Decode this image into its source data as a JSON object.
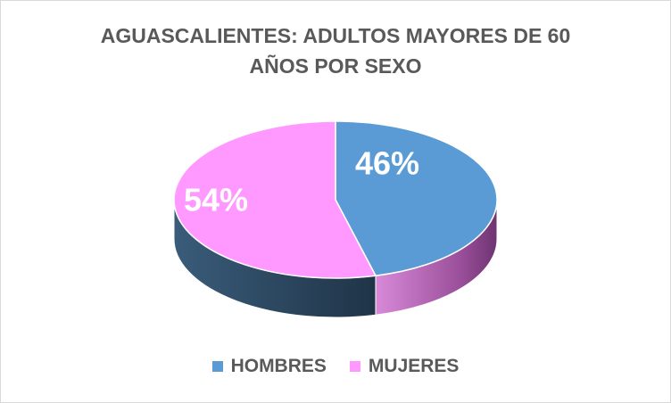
{
  "chart_data": {
    "type": "pie",
    "title_lines": [
      "AGUASCALIENTES: ADULTOS MAYORES DE 60",
      "AÑOS POR SEXO"
    ],
    "slices": [
      {
        "label": "HOMBRES",
        "value": 46,
        "display": "46%",
        "color": "#5b9bd5",
        "side_color": "#2e4a63"
      },
      {
        "label": "MUJERES",
        "value": 54,
        "display": "54%",
        "color": "#ff99ff",
        "side_color": "#a957a9"
      }
    ],
    "style": "3d-pie",
    "legend_position": "bottom"
  }
}
